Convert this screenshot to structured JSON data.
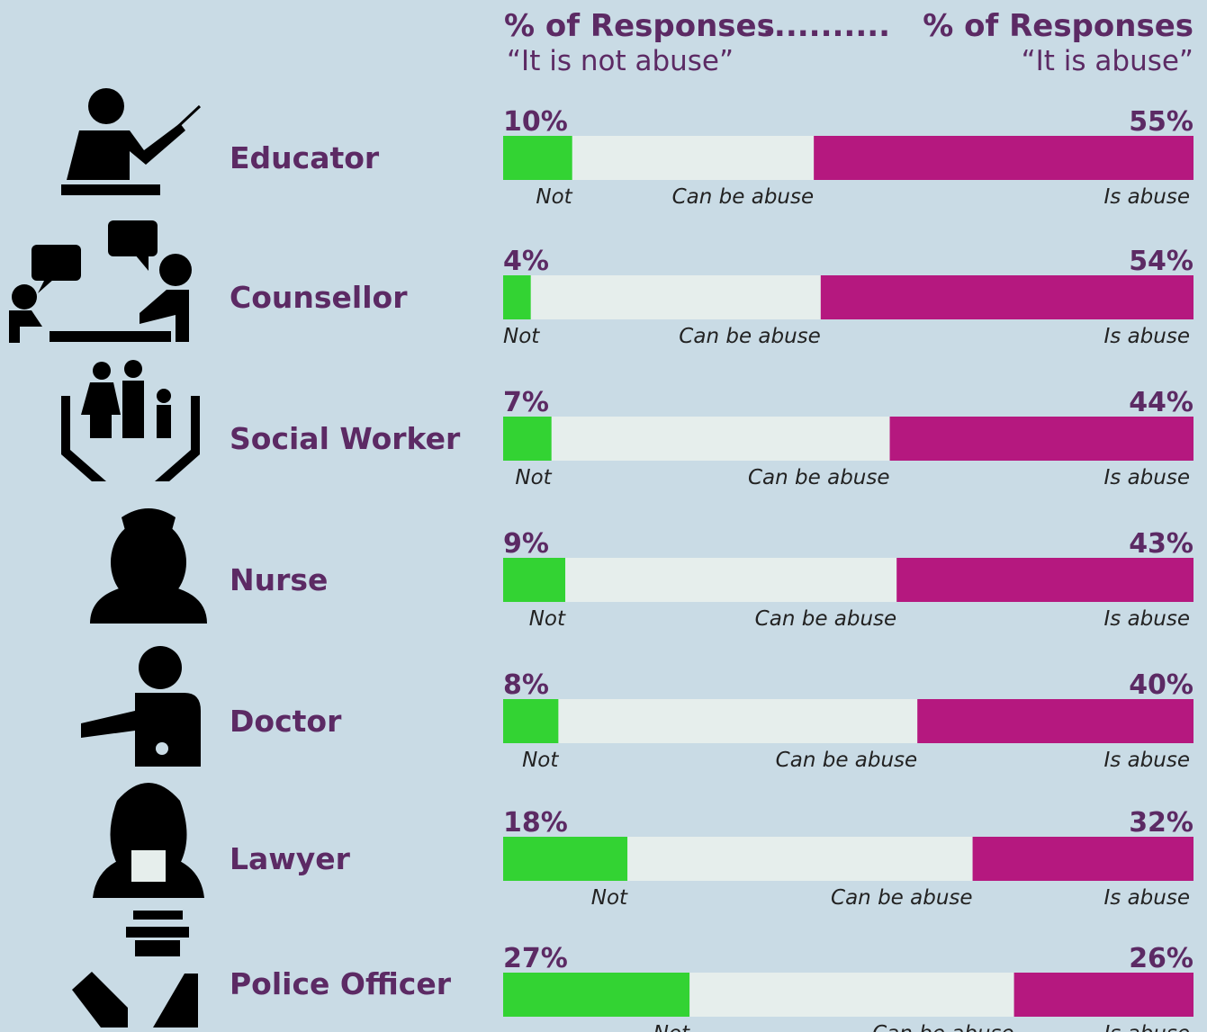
{
  "chart_data": {
    "type": "diverging-bar",
    "header": {
      "left_title": "% of Responses",
      "left_subtitle": "“It is not abuse”",
      "right_title": "% of Responses",
      "right_subtitle": "“It is abuse”"
    },
    "categories": [
      "Educator",
      "Counsellor",
      "Social Worker",
      "Nurse",
      "Doctor",
      "Lawyer",
      "Police Officer"
    ],
    "middle_label": "Can be abuse",
    "xlim": [
      0,
      100
    ],
    "series": [
      {
        "name": "Not",
        "color": "#33d333",
        "side": "left",
        "values": [
          10,
          4,
          7,
          9,
          8,
          18,
          27
        ],
        "value_labels": [
          "10%",
          "4%",
          "7%",
          "9%",
          "8%",
          "18%",
          "27%"
        ]
      },
      {
        "name": "Is abuse",
        "color": "#b5187f",
        "side": "right",
        "values": [
          55,
          54,
          44,
          43,
          40,
          32,
          26
        ],
        "value_labels": [
          "55%",
          "54%",
          "44%",
          "43%",
          "40%",
          "32%",
          "26%"
        ]
      }
    ],
    "track_color": "#e6eeec"
  }
}
